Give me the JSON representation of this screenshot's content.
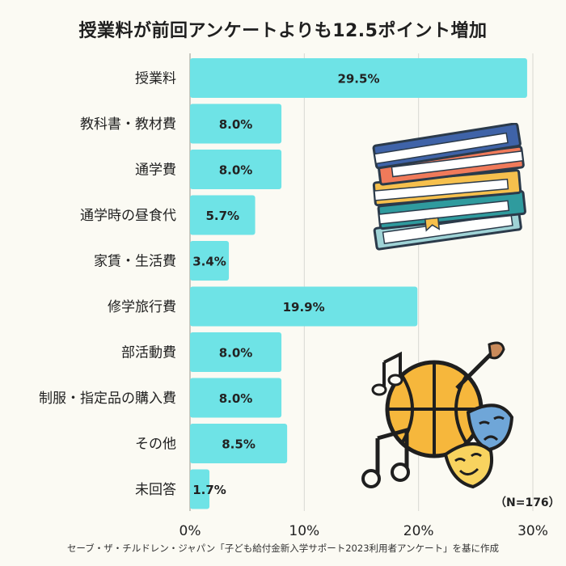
{
  "title": "授業料が前回アンケートよりも12.5ポイント増加",
  "note": "（N=176）",
  "source": "セーブ・ザ・チルドレン・ジャパン「子ども給付金新入学サポート2023利用者アンケート」を基に作成",
  "colors": {
    "bar": "#6ee3e6",
    "grid": "#d8d8d2",
    "background": "#fbfaf3"
  },
  "illustrations": [
    "stacked-books-icon",
    "music-sports-arts-icon"
  ],
  "chart_data": {
    "type": "bar",
    "orientation": "horizontal",
    "categories": [
      "授業料",
      "教科書・教材費",
      "通学費",
      "通学時の昼食代",
      "家賃・生活費",
      "修学旅行費",
      "部活動費",
      "制服・指定品の購入費",
      "その他",
      "未回答"
    ],
    "values": [
      29.5,
      8.0,
      8.0,
      5.7,
      3.4,
      19.9,
      8.0,
      8.0,
      8.5,
      1.7
    ],
    "value_labels": [
      "29.5%",
      "8.0%",
      "8.0%",
      "5.7%",
      "3.4%",
      "19.9%",
      "8.0%",
      "8.0%",
      "8.5%",
      "1.7%"
    ],
    "xlim": [
      0,
      30
    ],
    "xticks": [
      0,
      10,
      20,
      30
    ],
    "xtick_labels": [
      "0%",
      "10%",
      "20%",
      "30%"
    ],
    "grid": true
  }
}
